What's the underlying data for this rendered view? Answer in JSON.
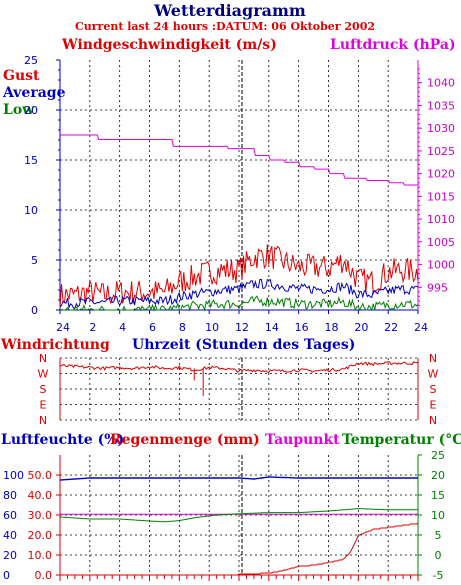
{
  "title": "Wetterdiagramm",
  "subtitle": "Current last 24 hours :DATUM: 06 Oktober 2002",
  "colors": {
    "red": "#e00000",
    "blue": "#0000c0",
    "green": "#008000",
    "magenta": "#e000e0",
    "navy": "#000080",
    "purple": "#cc00cc"
  },
  "chart_data": [
    {
      "type": "line",
      "ylabel_left": "Windgeschwindigkeit (m/s)",
      "ylabel_right": "Luftdruck (hPa)",
      "legend": [
        "Gust",
        "Average",
        "Low"
      ],
      "x_ticks": [
        "24",
        "2",
        "4",
        "6",
        "8",
        "10",
        "12",
        "14",
        "16",
        "18",
        "20",
        "22",
        "24"
      ],
      "x_range": [
        0,
        24
      ],
      "ylim_left": [
        0,
        25
      ],
      "yticks_left": [
        "0",
        "5",
        "10",
        "15",
        "20",
        "25"
      ],
      "ylim_right": [
        990,
        1045
      ],
      "yticks_right": [
        "995",
        "1000",
        "1005",
        "1010",
        "1015",
        "1020",
        "1025",
        "1030",
        "1035",
        "1040"
      ],
      "grid": true,
      "series": [
        {
          "name": "Gust",
          "axis": "left",
          "x": [
            0,
            1,
            2,
            3,
            4,
            5,
            6,
            7,
            8,
            9,
            10,
            11,
            12,
            13,
            14,
            15,
            16,
            17,
            18,
            19,
            20,
            21,
            22,
            23,
            24
          ],
          "y": [
            1.5,
            1.5,
            1.8,
            1.5,
            1.8,
            1.8,
            1.8,
            1.8,
            2.8,
            3.3,
            3.8,
            4,
            4,
            5.3,
            5.5,
            4.8,
            4.3,
            4.3,
            4.2,
            5,
            3,
            2.8,
            3.8,
            4,
            3.8
          ]
        },
        {
          "name": "Average",
          "axis": "left",
          "x": [
            0,
            1,
            2,
            3,
            4,
            5,
            6,
            7,
            8,
            9,
            10,
            11,
            12,
            13,
            14,
            15,
            16,
            17,
            18,
            19,
            20,
            21,
            22,
            23,
            24
          ],
          "y": [
            0.7,
            0.7,
            0.8,
            0.7,
            0.9,
            0.9,
            0.9,
            0.9,
            1.3,
            1.6,
            1.8,
            2,
            2.1,
            2.6,
            2.6,
            2.4,
            2.1,
            2.1,
            2.1,
            2.4,
            1.6,
            1.5,
            1.9,
            2.1,
            2
          ]
        },
        {
          "name": "Low",
          "axis": "left",
          "x": [
            0,
            1,
            2,
            3,
            4,
            5,
            6,
            7,
            8,
            9,
            10,
            11,
            12,
            13,
            14,
            15,
            16,
            17,
            18,
            19,
            20,
            21,
            22,
            23,
            24
          ],
          "y": [
            0,
            0,
            0,
            0,
            0,
            0,
            0,
            0,
            0.2,
            0.4,
            0.5,
            0.6,
            0.6,
            0.9,
            0.9,
            0.8,
            0.6,
            0.6,
            0.6,
            0.8,
            0.3,
            0.3,
            0.5,
            0.6,
            0.5
          ]
        },
        {
          "name": "Luftdruck",
          "axis": "right",
          "x": [
            0,
            2.5,
            2.6,
            7.5,
            7.6,
            11.2,
            11.3,
            13,
            13.1,
            14,
            14.1,
            15,
            15.1,
            16,
            16.1,
            17,
            17.1,
            18,
            18.1,
            19,
            19.1,
            20.5,
            20.6,
            22,
            22.1,
            23,
            23.1,
            24
          ],
          "y": [
            1028.5,
            1028.5,
            1027.5,
            1027.5,
            1026,
            1026,
            1025.5,
            1025.5,
            1024,
            1024,
            1023,
            1023,
            1022.5,
            1022.5,
            1021.5,
            1021.5,
            1021,
            1021,
            1020,
            1020,
            1019,
            1019,
            1018.5,
            1018.5,
            1018,
            1018,
            1017.5,
            1017.5
          ]
        }
      ]
    },
    {
      "type": "line",
      "ylabel_left": "Windrichtung",
      "xlabel": "Uhrzeit (Stunden des Tages)",
      "x_range": [
        0,
        24
      ],
      "y_categories": [
        "N",
        "W",
        "S",
        "E",
        "N"
      ],
      "grid": true,
      "series": [
        {
          "name": "Windrichtung",
          "x": [
            0,
            1,
            2,
            3,
            4,
            5,
            6,
            7,
            8,
            9,
            10,
            11,
            12,
            13,
            14,
            15,
            16,
            17,
            18,
            19,
            20,
            21,
            22,
            23,
            24
          ],
          "y": [
            315,
            310,
            305,
            300,
            305,
            300,
            310,
            300,
            305,
            290,
            305,
            300,
            285,
            290,
            285,
            285,
            290,
            285,
            290,
            295,
            330,
            325,
            330,
            330,
            330
          ]
        }
      ]
    },
    {
      "type": "line",
      "legend": [
        "Luftfeuchte (%)",
        "Regenmenge (mm)",
        "Taupunkt",
        "Temperatur (°C)"
      ],
      "x_range": [
        0,
        24
      ],
      "yticks_left_outer": [
        "0",
        "20",
        "40",
        "60",
        "80",
        "100"
      ],
      "yticks_left_inner": [
        "0.0",
        "10.0",
        "20.0",
        "30.0",
        "40.0",
        "50.0"
      ],
      "ylim_left_outer": [
        0,
        120
      ],
      "ylim_left_inner": [
        0,
        60
      ],
      "ylim_right": [
        -5,
        25
      ],
      "yticks_right": [
        "-5",
        "0",
        "5",
        "10",
        "15",
        "20",
        "25"
      ],
      "grid": true,
      "series": [
        {
          "name": "Luftfeuchte (%)",
          "axis": "left_outer",
          "x": [
            0,
            2,
            4,
            6,
            8,
            10,
            12,
            13,
            14,
            16,
            18,
            20,
            22,
            24
          ],
          "y": [
            95,
            97,
            97,
            97,
            97,
            97,
            97,
            96,
            98,
            97,
            97,
            97,
            97,
            97
          ]
        },
        {
          "name": "Regenmenge (mm)",
          "axis": "left_inner",
          "x": [
            0,
            8,
            10,
            12,
            14,
            15,
            16,
            17,
            18,
            19,
            19.5,
            20,
            21,
            22,
            23,
            24
          ],
          "y": [
            0,
            0,
            0.2,
            0.5,
            1.2,
            2.5,
            4.5,
            5.2,
            6.5,
            8,
            12,
            20,
            23,
            24,
            25,
            26
          ]
        },
        {
          "name": "Taupunkt",
          "axis": "right",
          "x": [
            0,
            24
          ],
          "y": [
            10.2,
            10.2
          ]
        },
        {
          "name": "Temperatur (°C)",
          "axis": "right",
          "x": [
            0,
            2,
            4,
            6,
            7,
            8,
            9,
            10,
            11,
            12,
            14,
            16,
            18,
            20,
            22,
            24
          ],
          "y": [
            9.5,
            9,
            9,
            8.5,
            8.3,
            8.6,
            9.3,
            9.8,
            10.1,
            10.3,
            10.6,
            10.6,
            11,
            11.6,
            11.3,
            11.3
          ]
        }
      ]
    }
  ]
}
